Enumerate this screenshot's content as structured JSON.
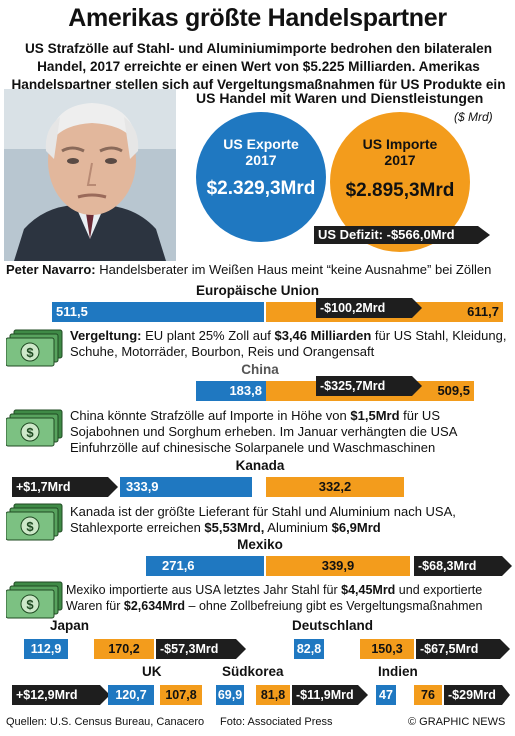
{
  "header": {
    "title": "Amerikas größte Handelspartner",
    "subtitle": "US Strafzölle auf Stahl- und Aluminiumimporte bedrohen den bilateralen Handel, 2017 erreichte er einen Wert von $5.225 Milliarden. Amerikas Handelspartner stellen sich auf Vergeltungsmaßnahmen für US Produkte ein"
  },
  "us_trade": {
    "title": "US Handel mit Waren und Dienstleistungen",
    "unit": "($ Mrd)",
    "exports_label": "US Exporte 2017",
    "exports_value": "$2.329,3Mrd",
    "imports_label": "US Importe 2017",
    "imports_value": "$2.895,3Mrd",
    "deficit": "US Defizit: -$566,0Mrd"
  },
  "caption": {
    "name": "Peter Navarro:",
    "text": " Handelsberater im Weißen Haus meint “keine Ausnahme” bei Zöllen"
  },
  "eu": {
    "name": "Europäische Union",
    "export": "511,5",
    "import": "611,7",
    "balance": "-$100,2Mrd",
    "note_bold1": "Vergeltung:",
    "note_mid": " EU plant 25% Zoll auf ",
    "note_bold2": "$3,46 Milliarden",
    "note_end": " für US Stahl, Kleidung, Schuhe, Motorräder, Bourbon, Reis und Orangensaft"
  },
  "china": {
    "name": "China",
    "export": "183,8",
    "import": "509,5",
    "balance": "-$325,7Mrd",
    "note_a": "China könnte Strafzölle auf Importe in Höhe von ",
    "note_bold": "$1,5Mrd",
    "note_b": " für US Sojabohnen und Sorghum erheben. Im Januar verhängten die USA Einfuhrzölle auf chinesische Solarpanele und Waschmaschinen"
  },
  "canada": {
    "name": "Kanada",
    "export": "333,9",
    "import": "332,2",
    "balance": "+$1,7Mrd",
    "note_a": "Kanada ist der größte Lieferant für Stahl und Aluminium nach USA, Stahlexporte erreichen ",
    "note_bold1": "$5,53Mrd,",
    "note_mid": "  Aluminium ",
    "note_bold2": "$6,9Mrd"
  },
  "mexico": {
    "name": "Mexiko",
    "export": "271,6",
    "import": "339,9",
    "balance": "-$68,3Mrd",
    "note_a": "Mexiko importierte aus USA letztes Jahr Stahl für ",
    "note_bold1": "$4,45Mrd",
    "note_mid": " und exportierte Waren für ",
    "note_bold2": "$2,634Mrd",
    "note_end": " – ohne Zollbefreiung gibt es Vergeltungsmaßnahmen"
  },
  "japan": {
    "name": "Japan",
    "export": "112,9",
    "import": "170,2",
    "balance": "-$57,3Mrd"
  },
  "germany": {
    "name": "Deutschland",
    "export": "82,8",
    "import": "150,3",
    "balance": "-$67,5Mrd"
  },
  "uk": {
    "name": "UK",
    "export": "120,7",
    "import": "107,8",
    "balance": "+$12,9Mrd"
  },
  "korea": {
    "name": "Südkorea",
    "export": "69,9",
    "import": "81,8",
    "balance": "-$11,9Mrd"
  },
  "india": {
    "name": "Indien",
    "export": "47",
    "import": "76",
    "balance": "-$29Mrd"
  },
  "footer": {
    "sources": "Quellen: U.S. Census Bureau, Canacero",
    "photo": "Foto: Associated Press",
    "brand": "© GRAPHIC NEWS"
  },
  "colors": {
    "export": "#1f78c1",
    "import": "#f39c1c",
    "balance": "#1e1e1e"
  },
  "chart_data": {
    "type": "bar",
    "categories": [
      "Europäische Union",
      "China",
      "Kanada",
      "Mexiko",
      "Japan",
      "Deutschland",
      "UK",
      "Südkorea",
      "Indien"
    ],
    "series": [
      {
        "name": "US Exporte 2017",
        "values": [
          511.5,
          183.8,
          333.9,
          271.6,
          112.9,
          82.8,
          120.7,
          69.9,
          47
        ]
      },
      {
        "name": "US Importe 2017",
        "values": [
          611.7,
          509.5,
          332.2,
          339.9,
          170.2,
          150.3,
          107.8,
          81.8,
          76
        ]
      }
    ],
    "balance": [
      -100.2,
      -325.7,
      1.7,
      -68.3,
      -57.3,
      -67.5,
      12.9,
      -11.9,
      -29
    ],
    "title": "Amerikas größte Handelspartner",
    "ylabel": "($ Mrd)"
  }
}
